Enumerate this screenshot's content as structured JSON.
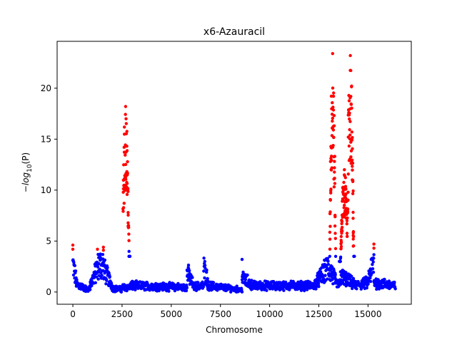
{
  "chart_data": {
    "type": "scatter",
    "title": "x6-Azauracil",
    "xlabel": "Chromosome",
    "ylabel": "−log10(P)",
    "xlim": [
      -800,
      17200
    ],
    "ylim": [
      -1.2,
      24.6
    ],
    "xticks": [
      0,
      2500,
      5000,
      7500,
      10000,
      12500,
      15000
    ],
    "yticks": [
      0,
      5,
      10,
      15,
      20
    ],
    "grid": false,
    "significance_threshold": 4.0,
    "colors": {
      "below_threshold": "#0000ff",
      "above_threshold": "#ff0000"
    },
    "n_positions": 16400,
    "segments": [
      {
        "x0": 0,
        "x1": 200,
        "y0": 3.5,
        "y1": 1.0
      },
      {
        "x0": 200,
        "x1": 800,
        "y0": 1.0,
        "y1": 0.2
      },
      {
        "x0": 800,
        "x1": 1300,
        "y0": 0.4,
        "y1": 3.3
      },
      {
        "x0": 1300,
        "x1": 1550,
        "y0": 3.3,
        "y1": 3.6
      },
      {
        "x0": 1550,
        "x1": 2000,
        "y0": 3.0,
        "y1": 0.8
      },
      {
        "x0": 2000,
        "x1": 2500,
        "y0": 0.5,
        "y1": 0.3
      },
      {
        "x0": 2500,
        "x1": 2950,
        "y0": 0.6,
        "y1": 0.6
      },
      {
        "x0": 2950,
        "x1": 5800,
        "y0": 0.8,
        "y1": 0.6
      },
      {
        "x0": 5800,
        "x1": 6100,
        "y0": 2.5,
        "y1": 1.0
      },
      {
        "x0": 6100,
        "x1": 6650,
        "y0": 0.7,
        "y1": 0.8
      },
      {
        "x0": 6650,
        "x1": 6850,
        "y0": 3.0,
        "y1": 1.5
      },
      {
        "x0": 6850,
        "x1": 8600,
        "y0": 0.8,
        "y1": 0.3
      },
      {
        "x0": 8600,
        "x1": 9200,
        "y0": 1.8,
        "y1": 0.7
      },
      {
        "x0": 9200,
        "x1": 12300,
        "y0": 0.8,
        "y1": 0.8
      },
      {
        "x0": 12300,
        "x1": 13000,
        "y0": 1.0,
        "y1": 3.2
      },
      {
        "x0": 13000,
        "x1": 13350,
        "y0": 3.0,
        "y1": 1.5
      },
      {
        "x0": 13350,
        "x1": 13600,
        "y0": 1.0,
        "y1": 1.0
      },
      {
        "x0": 13600,
        "x1": 14300,
        "y0": 2.0,
        "y1": 1.0
      },
      {
        "x0": 14300,
        "x1": 15000,
        "y0": 0.8,
        "y1": 1.2
      },
      {
        "x0": 15000,
        "x1": 15300,
        "y0": 1.5,
        "y1": 3.8
      },
      {
        "x0": 15300,
        "x1": 16400,
        "y0": 1.2,
        "y1": 0.8
      }
    ],
    "peaks": [
      {
        "x0": 2550,
        "x1": 2900,
        "top": 18.2,
        "center": 2680,
        "base": 3.5
      },
      {
        "x0": 13050,
        "x1": 13350,
        "top": 23.4,
        "center": 13200,
        "base": 3.5
      },
      {
        "x0": 13550,
        "x1": 13950,
        "top": 12.0,
        "center": 13800,
        "base": 3.0
      },
      {
        "x0": 13950,
        "x1": 14300,
        "top": 23.2,
        "center": 14100,
        "base": 3.5
      }
    ],
    "highlighted_points": [
      {
        "x": 0,
        "y": 4.6
      },
      {
        "x": 0,
        "y": 4.2
      },
      {
        "x": 1250,
        "y": 4.2
      },
      {
        "x": 1550,
        "y": 4.4
      },
      {
        "x": 1550,
        "y": 4.1
      },
      {
        "x": 15300,
        "y": 4.7
      },
      {
        "x": 15300,
        "y": 4.3
      },
      {
        "x": 14250,
        "y": 5.8
      },
      {
        "x": 14250,
        "y": 5.2
      },
      {
        "x": 14250,
        "y": 4.5
      }
    ],
    "isolated_points": [
      {
        "x": 8600,
        "y": 3.2
      },
      {
        "x": 12800,
        "y": 3.1
      }
    ]
  }
}
